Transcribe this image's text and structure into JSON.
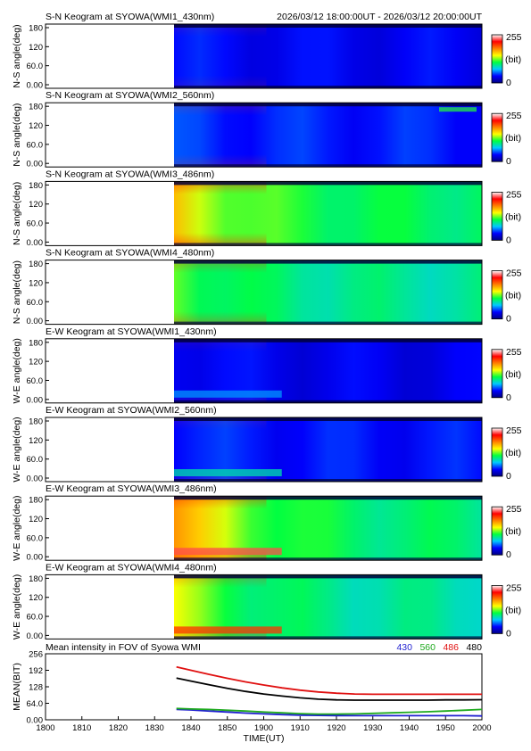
{
  "header": {
    "date_range": "2026/03/12 18:00:00UT - 2026/03/12 20:00:00UT"
  },
  "colorbar": {
    "max_label": "255",
    "unit_label": "(bit)",
    "min_label": "0"
  },
  "palette": {
    "stops": [
      "#000080",
      "#0000ff",
      "#00c8ff",
      "#00ff40",
      "#ffff00",
      "#ff8000",
      "#ff0000",
      "#ffffff"
    ],
    "gap": "#ffffff",
    "edge": "#00003a"
  },
  "keograms": [
    {
      "title": "S-N Keogram at SYOWA(WMI1_430nm)",
      "ylabel": "N-S angle(deg)",
      "yticks": [
        "180",
        "120",
        "60.0",
        "0.00"
      ],
      "profile": {
        "level": 0.13,
        "decay_start": 0.15,
        "morning_peak": 0.14,
        "band_low": 0.0,
        "band_high": 0.0
      }
    },
    {
      "title": "S-N Keogram at SYOWA(WMI2_560nm)",
      "ylabel": "N-S angle(deg)",
      "yticks": [
        "180",
        "120",
        "60.0",
        "0.00"
      ],
      "profile": {
        "level": 0.16,
        "decay_start": 0.18,
        "morning_peak": 0.22,
        "band_low": 0.0,
        "band_high": 0.25
      }
    },
    {
      "title": "S-N Keogram at SYOWA(WMI3_486nm)",
      "ylabel": "N-S angle(deg)",
      "yticks": [
        "180",
        "120",
        "60.0",
        "0.00"
      ],
      "profile": {
        "level": 0.4,
        "decay_start": 0.62,
        "morning_peak": 0.52,
        "band_low": 0.0,
        "band_high": 0.0
      }
    },
    {
      "title": "S-N Keogram at SYOWA(WMI4_480nm)",
      "ylabel": "N-S angle(deg)",
      "yticks": [
        "180",
        "120",
        "60.0",
        "0.00"
      ],
      "profile": {
        "level": 0.36,
        "decay_start": 0.48,
        "morning_peak": 0.38,
        "band_low": 0.0,
        "band_high": 0.0
      }
    },
    {
      "title": "E-W Keogram at SYOWA(WMI1_430nm)",
      "ylabel": "W-E angle(deg)",
      "yticks": [
        "180",
        "120",
        "60.0",
        "0.00"
      ],
      "profile": {
        "level": 0.12,
        "decay_start": 0.15,
        "morning_peak": 0.12,
        "band_low": 0.25,
        "band_high": 0.0
      }
    },
    {
      "title": "E-W Keogram at SYOWA(WMI2_560nm)",
      "ylabel": "W-E angle(deg)",
      "yticks": [
        "180",
        "120",
        "60.0",
        "0.00"
      ],
      "profile": {
        "level": 0.15,
        "decay_start": 0.17,
        "morning_peak": 0.14,
        "band_low": 0.35,
        "band_high": 0.0
      }
    },
    {
      "title": "E-W Keogram at SYOWA(WMI3_486nm)",
      "ylabel": "W-E angle(deg)",
      "yticks": [
        "180",
        "120",
        "60.0",
        "0.00"
      ],
      "profile": {
        "level": 0.38,
        "decay_start": 0.7,
        "morning_peak": 0.5,
        "band_low": 0.9,
        "band_high": 0.0
      }
    },
    {
      "title": "E-W Keogram at SYOWA(WMI4_480nm)",
      "ylabel": "W-E angle(deg)",
      "yticks": [
        "180",
        "120",
        "60.0",
        "0.00"
      ],
      "profile": {
        "level": 0.35,
        "decay_start": 0.55,
        "morning_peak": 0.35,
        "band_low": 0.8,
        "band_high": 0.0
      }
    }
  ],
  "chart_data": {
    "type": "line",
    "title": "Mean intensity in FOV of Syowa WMI",
    "xlabel": "TIME(UT)",
    "ylabel": "MEAN(BIT)",
    "x_ticks": [
      "1800",
      "1810",
      "1820",
      "1830",
      "1840",
      "1850",
      "1900",
      "1910",
      "1920",
      "1930",
      "1940",
      "1950",
      "2000"
    ],
    "y_ticks": [
      "256",
      "192",
      "128",
      "64.0",
      "0.00"
    ],
    "ylim": [
      0,
      256
    ],
    "x_minutes": [
      36,
      40,
      45,
      50,
      55,
      60,
      65,
      70,
      75,
      80,
      85,
      90,
      95,
      100,
      105,
      110,
      115,
      120
    ],
    "series": [
      {
        "name": "430",
        "color": "#1f1fd0",
        "values": [
          40,
          38,
          34,
          30,
          26,
          23,
          20,
          18,
          17,
          16,
          16,
          16,
          16,
          16,
          16,
          16,
          16,
          15
        ]
      },
      {
        "name": "560",
        "color": "#1faa1f",
        "values": [
          44,
          42,
          40,
          37,
          34,
          30,
          27,
          24,
          22,
          22,
          23,
          25,
          27,
          29,
          31,
          34,
          37,
          40
        ]
      },
      {
        "name": "486",
        "color": "#e01010",
        "values": [
          205,
          192,
          176,
          161,
          147,
          135,
          124,
          115,
          108,
          103,
          100,
          99,
          99,
          99,
          99,
          99,
          99,
          99
        ]
      },
      {
        "name": "480",
        "color": "#000000",
        "values": [
          162,
          150,
          136,
          122,
          110,
          100,
          92,
          85,
          80,
          77,
          76,
          76,
          76,
          76,
          76,
          77,
          77,
          78
        ]
      }
    ]
  }
}
